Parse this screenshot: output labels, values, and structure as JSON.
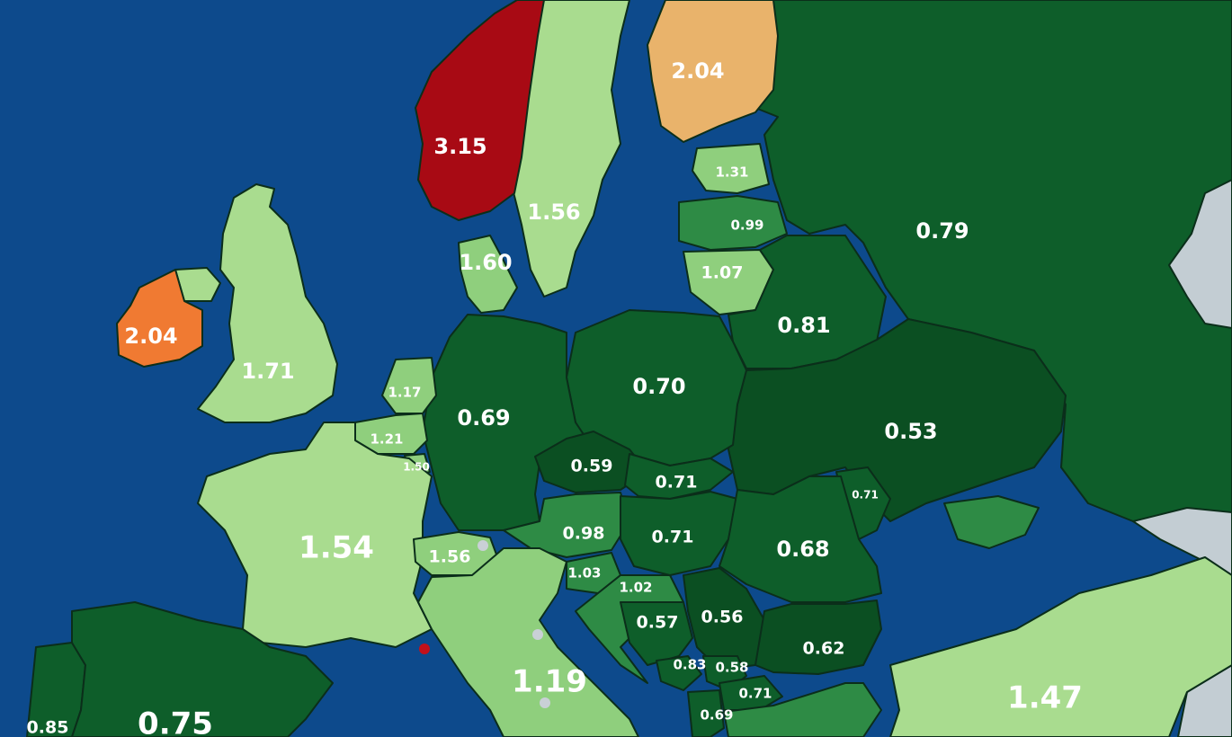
{
  "colors": {
    "sea": "#0d4a8c",
    "dark_green": "#0e5e2a",
    "darker_green": "#0b4f22",
    "mid_green": "#2e8b45",
    "light_green": "#8fcf7d",
    "pale_green": "#a9dc8f",
    "orange_light": "#e9b36b",
    "orange": "#f07a32",
    "red": "#a80a14",
    "grey": "#c3cdd3"
  },
  "countries": {
    "norway": "3.15",
    "sweden": "1.56",
    "finland": "2.04",
    "estonia": "1.31",
    "latvia": "0.99",
    "lithuania": "1.07",
    "russia": "0.79",
    "belarus": "0.81",
    "ukraine": "0.53",
    "moldova": "0.71",
    "denmark": "1.60",
    "ireland": "2.04",
    "uk": "1.71",
    "netherlands": "1.17",
    "belgium": "1.21",
    "luxembourg": "1.50",
    "germany": "0.69",
    "poland": "0.70",
    "czechia": "0.59",
    "slovakia": "0.71",
    "austria": "0.98",
    "hungary": "0.71",
    "romania": "0.68",
    "slovenia": "1.03",
    "croatia": "1.02",
    "bosnia": "0.57",
    "serbia": "0.56",
    "bulgaria": "0.62",
    "montenegro": "0.83",
    "kosovo": "0.58",
    "north_macedonia": "0.71",
    "albania": "0.69",
    "france": "1.54",
    "switzerland": "1.56",
    "italy": "1.19",
    "portugal": "0.85",
    "spain": "0.75",
    "turkey": "1.47"
  }
}
